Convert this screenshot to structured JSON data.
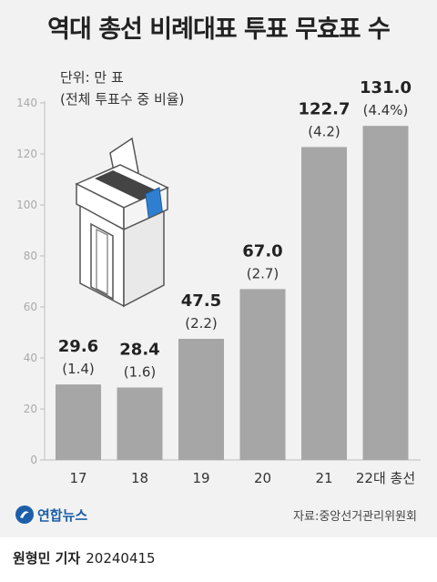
{
  "title": "역대 총선 비례대표 투표 무효표 수",
  "unit_line1": "단위: 만 표",
  "unit_line2": "(전체 투표수 중 비율)",
  "chart_data": {
    "type": "bar",
    "title": "역대 총선 비례대표 투표 무효표 수",
    "categories": [
      "17",
      "18",
      "19",
      "20",
      "21",
      "22대 총선"
    ],
    "values": [
      29.6,
      28.4,
      47.5,
      67.0,
      122.7,
      131.0
    ],
    "value_labels": [
      "29.6",
      "28.4",
      "47.5",
      "67.0",
      "122.7",
      "131.0"
    ],
    "percent_labels": [
      "(1.4)",
      "(1.6)",
      "(2.2)",
      "(2.7)",
      "(4.2)",
      "(4.4%)"
    ],
    "yticks": [
      0,
      20,
      40,
      60,
      80,
      100,
      120,
      140
    ],
    "ylim": [
      0,
      140
    ],
    "grid": false,
    "legend": "none",
    "colors": {
      "bar": "#a6a6a6",
      "axis": "#bdbdbd",
      "tick_label": "#aaaaaa"
    }
  },
  "footer": {
    "logo": "연합뉴스",
    "source": "자료:중앙선거관리위원회",
    "author": "원형민 기자",
    "date": "20240415"
  },
  "icons": {
    "ballot_box": "ballot-box-icon",
    "logo_mark": "yonhap-logo-icon"
  }
}
